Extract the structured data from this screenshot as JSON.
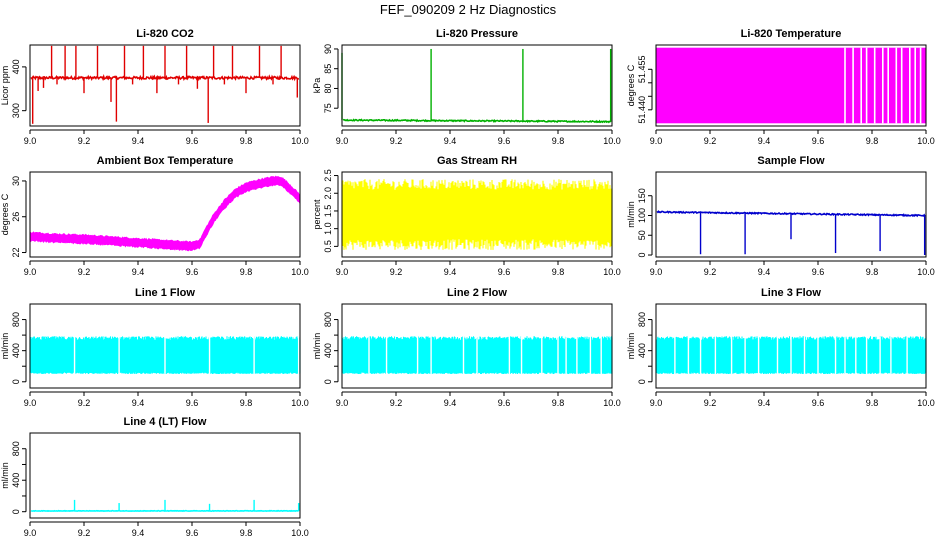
{
  "title": "FEF_090209  2 Hz Diagnostics",
  "chart_data": [
    {
      "type": "line",
      "title": "Li-820 CO2",
      "xlabel": "",
      "ylabel": "Licor ppm",
      "xlim": [
        9.0,
        10.0
      ],
      "ylim": [
        265,
        450
      ],
      "x_ticks": [
        "9.0",
        "9.2",
        "9.4",
        "9.6",
        "9.8",
        "10.0"
      ],
      "y_ticks": [
        300,
        400
      ],
      "y_tick_labels": [
        "300",
        "400"
      ],
      "color": "#e00000",
      "series": [
        {
          "name": "CO2",
          "style": "spiky",
          "baseline": 375,
          "noise": 3,
          "spikes": [
            {
              "x": 9.01,
              "y": 270
            },
            {
              "x": 9.03,
              "y": 345
            },
            {
              "x": 9.05,
              "y": 352
            },
            {
              "x": 9.08,
              "y": 448
            },
            {
              "x": 9.1,
              "y": 360
            },
            {
              "x": 9.13,
              "y": 448
            },
            {
              "x": 9.17,
              "y": 448
            },
            {
              "x": 9.2,
              "y": 340
            },
            {
              "x": 9.25,
              "y": 448
            },
            {
              "x": 9.3,
              "y": 320
            },
            {
              "x": 9.32,
              "y": 275
            },
            {
              "x": 9.35,
              "y": 448
            },
            {
              "x": 9.38,
              "y": 360
            },
            {
              "x": 9.42,
              "y": 448
            },
            {
              "x": 9.47,
              "y": 340
            },
            {
              "x": 9.5,
              "y": 448
            },
            {
              "x": 9.55,
              "y": 360
            },
            {
              "x": 9.58,
              "y": 448
            },
            {
              "x": 9.62,
              "y": 350
            },
            {
              "x": 9.66,
              "y": 272
            },
            {
              "x": 9.68,
              "y": 448
            },
            {
              "x": 9.72,
              "y": 360
            },
            {
              "x": 9.75,
              "y": 448
            },
            {
              "x": 9.8,
              "y": 340
            },
            {
              "x": 9.85,
              "y": 448
            },
            {
              "x": 9.9,
              "y": 360
            },
            {
              "x": 9.93,
              "y": 448
            },
            {
              "x": 9.99,
              "y": 330
            }
          ]
        }
      ]
    },
    {
      "type": "line",
      "title": "Li-820 Pressure",
      "xlabel": "",
      "ylabel": "kPa",
      "xlim": [
        9.0,
        10.0
      ],
      "ylim": [
        70.5,
        91
      ],
      "x_ticks": [
        "9.0",
        "9.2",
        "9.4",
        "9.6",
        "9.8",
        "10.0"
      ],
      "y_ticks": [
        75,
        80,
        85,
        90
      ],
      "y_tick_labels": [
        "75",
        "80",
        "85",
        "90"
      ],
      "color": "#00b000",
      "series": [
        {
          "name": "Pressure",
          "style": "spiky",
          "baseline": 72,
          "end_baseline": 71.6,
          "noise": 0.15,
          "spikes": [
            {
              "x": 9.0,
              "y": 89
            },
            {
              "x": 9.33,
              "y": 90
            },
            {
              "x": 9.67,
              "y": 90
            },
            {
              "x": 9.995,
              "y": 90
            }
          ]
        }
      ]
    },
    {
      "type": "area",
      "title": "Li-820 Temperature",
      "xlabel": "",
      "ylabel": "degrees C",
      "xlim": [
        9.0,
        10.0
      ],
      "ylim": [
        51.434,
        51.464
      ],
      "x_ticks": [
        "9.0",
        "9.2",
        "9.4",
        "9.6",
        "9.8",
        "10.0"
      ],
      "y_ticks": [
        51.44,
        51.445,
        51.45,
        51.455
      ],
      "y_tick_labels": [
        "51.440",
        "",
        "",
        "51.455"
      ],
      "color": "#ff00ff",
      "series": [
        {
          "name": "Temperature",
          "style": "block",
          "x_start": 9.0,
          "x_end": 10.0,
          "low": 51.435,
          "high": 51.463,
          "gaps": [
            9.7,
            9.73,
            9.76,
            9.78,
            9.81,
            9.84,
            9.86,
            9.89,
            9.91,
            9.94,
            9.96,
            9.98
          ]
        }
      ]
    },
    {
      "type": "line",
      "title": "Ambient Box Temperature",
      "xlabel": "",
      "ylabel": "degrees C",
      "xlim": [
        9.0,
        10.0
      ],
      "ylim": [
        21.5,
        31
      ],
      "x_ticks": [
        "9.0",
        "9.2",
        "9.4",
        "9.6",
        "9.8",
        "10.0"
      ],
      "y_ticks": [
        22,
        26,
        30
      ],
      "y_tick_labels": [
        "22",
        "26",
        "30"
      ],
      "color": "#ff00ff",
      "series": [
        {
          "name": "Box temperature",
          "style": "band",
          "halfwidth": 0.45,
          "x": [
            9.0,
            9.1,
            9.2,
            9.3,
            9.4,
            9.5,
            9.6,
            9.63,
            9.65,
            9.68,
            9.72,
            9.76,
            9.8,
            9.85,
            9.9,
            9.93,
            9.96,
            10.0
          ],
          "y": [
            23.8,
            23.6,
            23.5,
            23.3,
            23.1,
            22.9,
            22.7,
            23.0,
            24.2,
            25.8,
            27.4,
            28.6,
            29.3,
            29.7,
            30.0,
            30.0,
            29.2,
            28.0
          ]
        }
      ]
    },
    {
      "type": "area",
      "title": "Gas Stream RH",
      "xlabel": "",
      "ylabel": "percent",
      "xlim": [
        9.0,
        10.0
      ],
      "ylim": [
        0.2,
        2.6
      ],
      "x_ticks": [
        "9.0",
        "9.2",
        "9.4",
        "9.6",
        "9.8",
        "10.0"
      ],
      "y_ticks": [
        0.5,
        1.0,
        1.5,
        2.0,
        2.5
      ],
      "y_tick_labels": [
        "0.5",
        "1.0",
        "1.5",
        "2.0",
        "2.5"
      ],
      "color": "#ffff00",
      "series": [
        {
          "name": "RH",
          "style": "dense",
          "x_start": 9.0,
          "x_end": 10.0,
          "top": 2.25,
          "top_noise": 0.15,
          "bottom": 0.55,
          "bottom_noise": 0.15,
          "density": 1
        }
      ]
    },
    {
      "type": "line",
      "title": "Sample Flow",
      "xlabel": "",
      "ylabel": "ml/min",
      "xlim": [
        9.0,
        10.0
      ],
      "ylim": [
        -5,
        210
      ],
      "x_ticks": [
        "9.0",
        "9.2",
        "9.4",
        "9.6",
        "9.8",
        "10.0"
      ],
      "y_ticks": [
        0,
        50,
        100,
        150
      ],
      "y_tick_labels": [
        "0",
        "50",
        "100",
        "150"
      ],
      "color": "#0000cc",
      "series": [
        {
          "name": "Sample flow",
          "style": "spiky",
          "baseline": 109,
          "end_baseline": 100,
          "noise": 1.5,
          "spikes": [
            {
              "x": 9.165,
              "y": 2
            },
            {
              "x": 9.33,
              "y": 2
            },
            {
              "x": 9.5,
              "y": 40
            },
            {
              "x": 9.665,
              "y": 5
            },
            {
              "x": 9.83,
              "y": 10
            },
            {
              "x": 9.995,
              "y": 0
            }
          ]
        }
      ]
    },
    {
      "type": "area",
      "title": "Line 1 Flow",
      "xlabel": "",
      "ylabel": "ml/min",
      "xlim": [
        9.0,
        10.0
      ],
      "ylim": [
        -80,
        1000
      ],
      "x_ticks": [
        "9.0",
        "9.2",
        "9.4",
        "9.6",
        "9.8",
        "10.0"
      ],
      "y_ticks": [
        0,
        200,
        400,
        600,
        800
      ],
      "y_tick_labels": [
        "0",
        "",
        "400",
        "",
        "800"
      ],
      "color": "#00ffff",
      "series": [
        {
          "name": "Line 1",
          "style": "dense",
          "x_start": 9.0,
          "x_end": 10.0,
          "top": 560,
          "top_noise": 25,
          "bottom": 110,
          "bottom_noise": 10,
          "density": 2,
          "gaps": [
            9.165,
            9.33,
            9.5,
            9.665,
            9.83,
            9.995
          ]
        }
      ]
    },
    {
      "type": "area",
      "title": "Line 2 Flow",
      "xlabel": "",
      "ylabel": "ml/min",
      "xlim": [
        9.0,
        10.0
      ],
      "ylim": [
        -80,
        1000
      ],
      "x_ticks": [
        "9.0",
        "9.2",
        "9.4",
        "9.6",
        "9.8",
        "10.0"
      ],
      "y_ticks": [
        0,
        200,
        400,
        600,
        800
      ],
      "y_tick_labels": [
        "0",
        "",
        "400",
        "",
        "800"
      ],
      "color": "#00ffff",
      "series": [
        {
          "name": "Line 2",
          "style": "dense",
          "x_start": 9.0,
          "x_end": 10.0,
          "top": 560,
          "top_noise": 25,
          "bottom": 110,
          "bottom_noise": 10,
          "density": 2,
          "gaps": [
            9.1,
            9.165,
            9.28,
            9.33,
            9.45,
            9.5,
            9.62,
            9.665,
            9.74,
            9.8,
            9.83,
            9.87,
            9.92,
            9.96
          ]
        }
      ]
    },
    {
      "type": "area",
      "title": "Line 3 Flow",
      "xlabel": "",
      "ylabel": "ml/min",
      "xlim": [
        9.0,
        10.0
      ],
      "ylim": [
        -80,
        1000
      ],
      "x_ticks": [
        "9.0",
        "9.2",
        "9.4",
        "9.6",
        "9.8",
        "10.0"
      ],
      "y_ticks": [
        0,
        200,
        400,
        600,
        800
      ],
      "y_tick_labels": [
        "0",
        "",
        "400",
        "",
        "800"
      ],
      "color": "#00ffff",
      "series": [
        {
          "name": "Line 3",
          "style": "dense",
          "x_start": 9.0,
          "x_end": 10.0,
          "top": 560,
          "top_noise": 25,
          "bottom": 110,
          "bottom_noise": 10,
          "density": 2,
          "gaps": [
            9.07,
            9.12,
            9.165,
            9.22,
            9.28,
            9.33,
            9.38,
            9.45,
            9.5,
            9.55,
            9.6,
            9.665,
            9.7,
            9.74,
            9.78,
            9.83,
            9.87,
            9.93
          ]
        }
      ]
    },
    {
      "type": "line",
      "title": "Line 4 (LT) Flow",
      "xlabel": "",
      "ylabel": "ml/min",
      "xlim": [
        9.0,
        10.0
      ],
      "ylim": [
        -80,
        1000
      ],
      "x_ticks": [
        "9.0",
        "9.2",
        "9.4",
        "9.6",
        "9.8",
        "10.0"
      ],
      "y_ticks": [
        0,
        200,
        400,
        600,
        800
      ],
      "y_tick_labels": [
        "0",
        "",
        "400",
        "",
        "800"
      ],
      "color": "#00ffff",
      "series": [
        {
          "name": "Line 4",
          "style": "spiky",
          "baseline": 10,
          "noise": 3,
          "spikes": [
            {
              "x": 9.165,
              "y": 150
            },
            {
              "x": 9.33,
              "y": 110
            },
            {
              "x": 9.5,
              "y": 150
            },
            {
              "x": 9.665,
              "y": 100
            },
            {
              "x": 9.83,
              "y": 150
            },
            {
              "x": 9.995,
              "y": 110
            }
          ]
        }
      ]
    }
  ]
}
